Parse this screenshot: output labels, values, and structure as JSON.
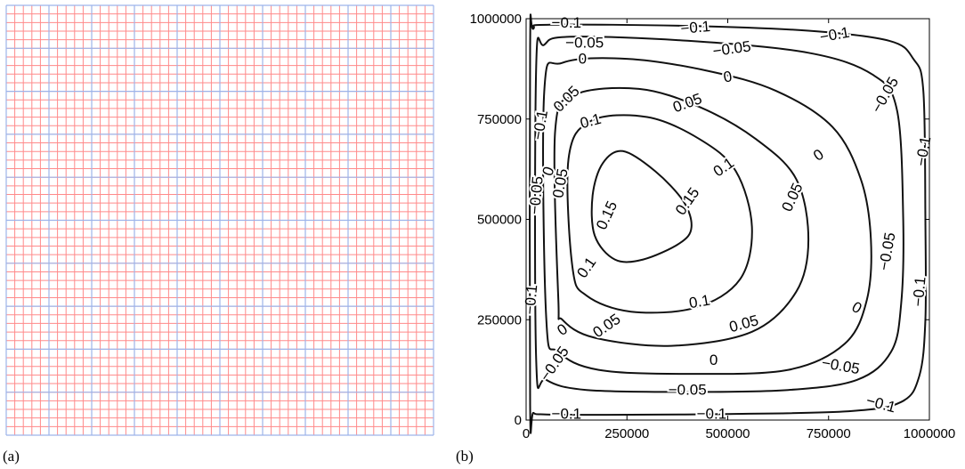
{
  "panels": {
    "a_label": "(a)",
    "b_label": "(b)"
  },
  "mesh": {
    "description_colors": {
      "fine_lines": "#ff8a8a",
      "coarse_lines": "#9db4ea"
    },
    "range": [
      0,
      1000000
    ],
    "fine_spacing": 20000,
    "coarse_spacing": 100000
  },
  "chart_data": {
    "type": "contour",
    "title": "",
    "xlabel": "",
    "ylabel": "",
    "xlim": [
      0,
      1000000
    ],
    "ylim": [
      0,
      1000000
    ],
    "x_ticks": [
      0,
      250000,
      500000,
      750000,
      1000000
    ],
    "y_ticks": [
      0,
      250000,
      500000,
      750000,
      1000000
    ],
    "x_tick_labels": [
      "0",
      "250000",
      "500000",
      "750000",
      "1000000"
    ],
    "y_tick_labels": [
      "0",
      "250000",
      "500000",
      "750000",
      "1000000"
    ],
    "grid": false,
    "contours": [
      {
        "level": -0.1,
        "path": [
          [
            10000,
            40000
          ],
          [
            10000,
            930000
          ],
          [
            18000,
            975000
          ],
          [
            60000,
            985000
          ],
          [
            400000,
            982000
          ],
          [
            700000,
            970000
          ],
          [
            900000,
            945000
          ],
          [
            960000,
            900000
          ],
          [
            985000,
            820000
          ],
          [
            990000,
            500000
          ],
          [
            990000,
            250000
          ],
          [
            975000,
            110000
          ],
          [
            930000,
            45000
          ],
          [
            800000,
            22000
          ],
          [
            500000,
            15000
          ],
          [
            200000,
            13000
          ],
          [
            50000,
            14000
          ],
          [
            18000,
            18000
          ],
          [
            10000,
            40000
          ]
        ]
      },
      {
        "level": -0.05,
        "path": [
          [
            25000,
            150000
          ],
          [
            25000,
            880000
          ],
          [
            45000,
            935000
          ],
          [
            110000,
            955000
          ],
          [
            400000,
            945000
          ],
          [
            700000,
            915000
          ],
          [
            860000,
            860000
          ],
          [
            920000,
            770000
          ],
          [
            935000,
            500000
          ],
          [
            930000,
            290000
          ],
          [
            905000,
            170000
          ],
          [
            820000,
            100000
          ],
          [
            650000,
            75000
          ],
          [
            400000,
            70000
          ],
          [
            150000,
            75000
          ],
          [
            50000,
            100000
          ],
          [
            25000,
            150000
          ]
        ]
      },
      {
        "level": 0,
        "path": [
          [
            50000,
            250000
          ],
          [
            45000,
            820000
          ],
          [
            90000,
            890000
          ],
          [
            250000,
            900000
          ],
          [
            450000,
            870000
          ],
          [
            620000,
            820000
          ],
          [
            760000,
            730000
          ],
          [
            830000,
            600000
          ],
          [
            855000,
            450000
          ],
          [
            845000,
            300000
          ],
          [
            790000,
            190000
          ],
          [
            650000,
            125000
          ],
          [
            400000,
            115000
          ],
          [
            180000,
            125000
          ],
          [
            80000,
            170000
          ],
          [
            50000,
            250000
          ]
        ]
      },
      {
        "level": 0.05,
        "path": [
          [
            80000,
            300000
          ],
          [
            72000,
            720000
          ],
          [
            120000,
            810000
          ],
          [
            280000,
            825000
          ],
          [
            430000,
            780000
          ],
          [
            570000,
            700000
          ],
          [
            670000,
            600000
          ],
          [
            700000,
            450000
          ],
          [
            670000,
            320000
          ],
          [
            560000,
            220000
          ],
          [
            360000,
            185000
          ],
          [
            170000,
            205000
          ],
          [
            90000,
            250000
          ],
          [
            80000,
            300000
          ]
        ]
      },
      {
        "level": 0.1,
        "path": [
          [
            115000,
            380000
          ],
          [
            105000,
            650000
          ],
          [
            160000,
            745000
          ],
          [
            300000,
            755000
          ],
          [
            430000,
            700000
          ],
          [
            520000,
            620000
          ],
          [
            560000,
            480000
          ],
          [
            530000,
            350000
          ],
          [
            420000,
            280000
          ],
          [
            260000,
            270000
          ],
          [
            150000,
            310000
          ],
          [
            115000,
            380000
          ]
        ]
      },
      {
        "level": 0.15,
        "path": [
          [
            170000,
            460000
          ],
          [
            165000,
            560000
          ],
          [
            190000,
            640000
          ],
          [
            240000,
            670000
          ],
          [
            320000,
            620000
          ],
          [
            390000,
            545000
          ],
          [
            410000,
            480000
          ],
          [
            380000,
            440000
          ],
          [
            290000,
            400000
          ],
          [
            220000,
            400000
          ],
          [
            170000,
            460000
          ]
        ]
      }
    ],
    "contour_labels": [
      {
        "text": "−0.1",
        "x": 100000,
        "y": 990000,
        "rot": 0
      },
      {
        "text": "−0.1",
        "x": 420000,
        "y": 978000,
        "rot": -5
      },
      {
        "text": "−0.1",
        "x": 765000,
        "y": 960000,
        "rot": -10
      },
      {
        "text": "−0.05",
        "x": 145000,
        "y": 940000,
        "rot": 0
      },
      {
        "text": "−0.05",
        "x": 510000,
        "y": 925000,
        "rot": -8
      },
      {
        "text": "0",
        "x": 140000,
        "y": 900000,
        "rot": 0
      },
      {
        "text": "0",
        "x": 500000,
        "y": 855000,
        "rot": -10
      },
      {
        "text": "−0.05",
        "x": 890000,
        "y": 810000,
        "rot": -60
      },
      {
        "text": "−0.1",
        "x": 985000,
        "y": 670000,
        "rot": -80
      },
      {
        "text": "0.05",
        "x": 100000,
        "y": 800000,
        "rot": -45
      },
      {
        "text": "0.05",
        "x": 400000,
        "y": 790000,
        "rot": -20
      },
      {
        "text": "0.1",
        "x": 160000,
        "y": 745000,
        "rot": -15
      },
      {
        "text": "0",
        "x": 725000,
        "y": 660000,
        "rot": -35
      },
      {
        "text": "−0.1",
        "x": 35000,
        "y": 735000,
        "rot": -80
      },
      {
        "text": "0.1",
        "x": 490000,
        "y": 630000,
        "rot": -35
      },
      {
        "text": "0",
        "x": 55000,
        "y": 620000,
        "rot": -70
      },
      {
        "text": "0.05",
        "x": 85000,
        "y": 590000,
        "rot": -80
      },
      {
        "text": "0.05",
        "x": 660000,
        "y": 555000,
        "rot": -65
      },
      {
        "text": "−0.05",
        "x": 25000,
        "y": 560000,
        "rot": -85
      },
      {
        "text": "0.15",
        "x": 400000,
        "y": 545000,
        "rot": -55
      },
      {
        "text": "0.15",
        "x": 200000,
        "y": 510000,
        "rot": -65
      },
      {
        "text": "−0.05",
        "x": 895000,
        "y": 420000,
        "rot": -80
      },
      {
        "text": "0.1",
        "x": 150000,
        "y": 380000,
        "rot": -55
      },
      {
        "text": "−0.1",
        "x": 975000,
        "y": 320000,
        "rot": -85
      },
      {
        "text": "0.1",
        "x": 430000,
        "y": 295000,
        "rot": -10
      },
      {
        "text": "−0.1",
        "x": 12000,
        "y": 300000,
        "rot": -85
      },
      {
        "text": "0",
        "x": 820000,
        "y": 280000,
        "rot": 30
      },
      {
        "text": "0.05",
        "x": 200000,
        "y": 235000,
        "rot": -35
      },
      {
        "text": "0.05",
        "x": 540000,
        "y": 240000,
        "rot": -15
      },
      {
        "text": "0",
        "x": 90000,
        "y": 225000,
        "rot": -35
      },
      {
        "text": "−0.05",
        "x": 70000,
        "y": 140000,
        "rot": -55
      },
      {
        "text": "0",
        "x": 465000,
        "y": 150000,
        "rot": 0
      },
      {
        "text": "−0.05",
        "x": 780000,
        "y": 135000,
        "rot": 10
      },
      {
        "text": "−0.05",
        "x": 400000,
        "y": 75000,
        "rot": 0
      },
      {
        "text": "−0.1",
        "x": 100000,
        "y": 15000,
        "rot": 0
      },
      {
        "text": "−0.1",
        "x": 460000,
        "y": 15000,
        "rot": 0
      },
      {
        "text": "−0.1",
        "x": 880000,
        "y": 40000,
        "rot": 15
      }
    ]
  }
}
